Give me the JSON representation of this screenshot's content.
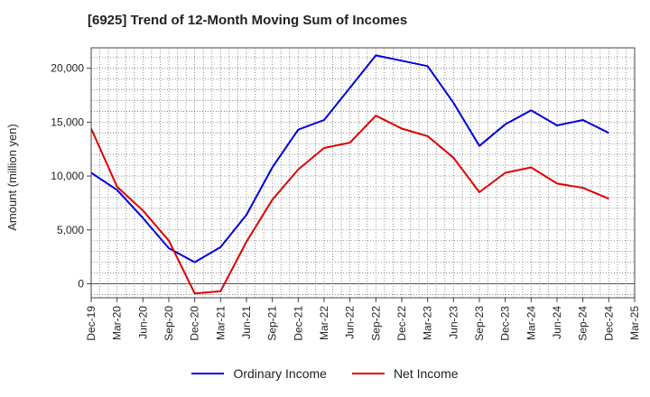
{
  "chart_data": {
    "type": "line",
    "title": "[6925]  Trend of 12-Month Moving Sum of Incomes",
    "xlabel": "",
    "ylabel": "Amount (million yen)",
    "ylim": [
      -1300,
      21900
    ],
    "yticks": [
      0,
      5000,
      10000,
      15000,
      20000
    ],
    "ytick_labels": [
      "0",
      "5,000",
      "10,000",
      "15,000",
      "20,000"
    ],
    "grid": true,
    "legend_position": "bottom-center",
    "categories": [
      "Dec-19",
      "Mar-20",
      "Jun-20",
      "Sep-20",
      "Dec-20",
      "Mar-21",
      "Jun-21",
      "Sep-21",
      "Dec-21",
      "Mar-22",
      "Jun-22",
      "Sep-22",
      "Dec-22",
      "Mar-23",
      "Jun-23",
      "Sep-23",
      "Dec-23",
      "Mar-24",
      "Jun-24",
      "Sep-24",
      "Dec-24",
      "Mar-25"
    ],
    "series": [
      {
        "name": "Ordinary Income",
        "color": "#0000dd",
        "values": [
          10300,
          8700,
          6100,
          3300,
          2000,
          3400,
          6400,
          10800,
          14300,
          15200,
          18200,
          21200,
          20700,
          20200,
          16800,
          12800,
          14800,
          16100,
          14700,
          15200,
          14000,
          null
        ]
      },
      {
        "name": "Net Income",
        "color": "#dd0000",
        "values": [
          14400,
          9000,
          6800,
          4000,
          -900,
          -700,
          3900,
          7800,
          10600,
          12600,
          13100,
          15600,
          14400,
          13700,
          11700,
          8500,
          10300,
          10800,
          9300,
          8900,
          7900,
          null
        ]
      }
    ]
  }
}
